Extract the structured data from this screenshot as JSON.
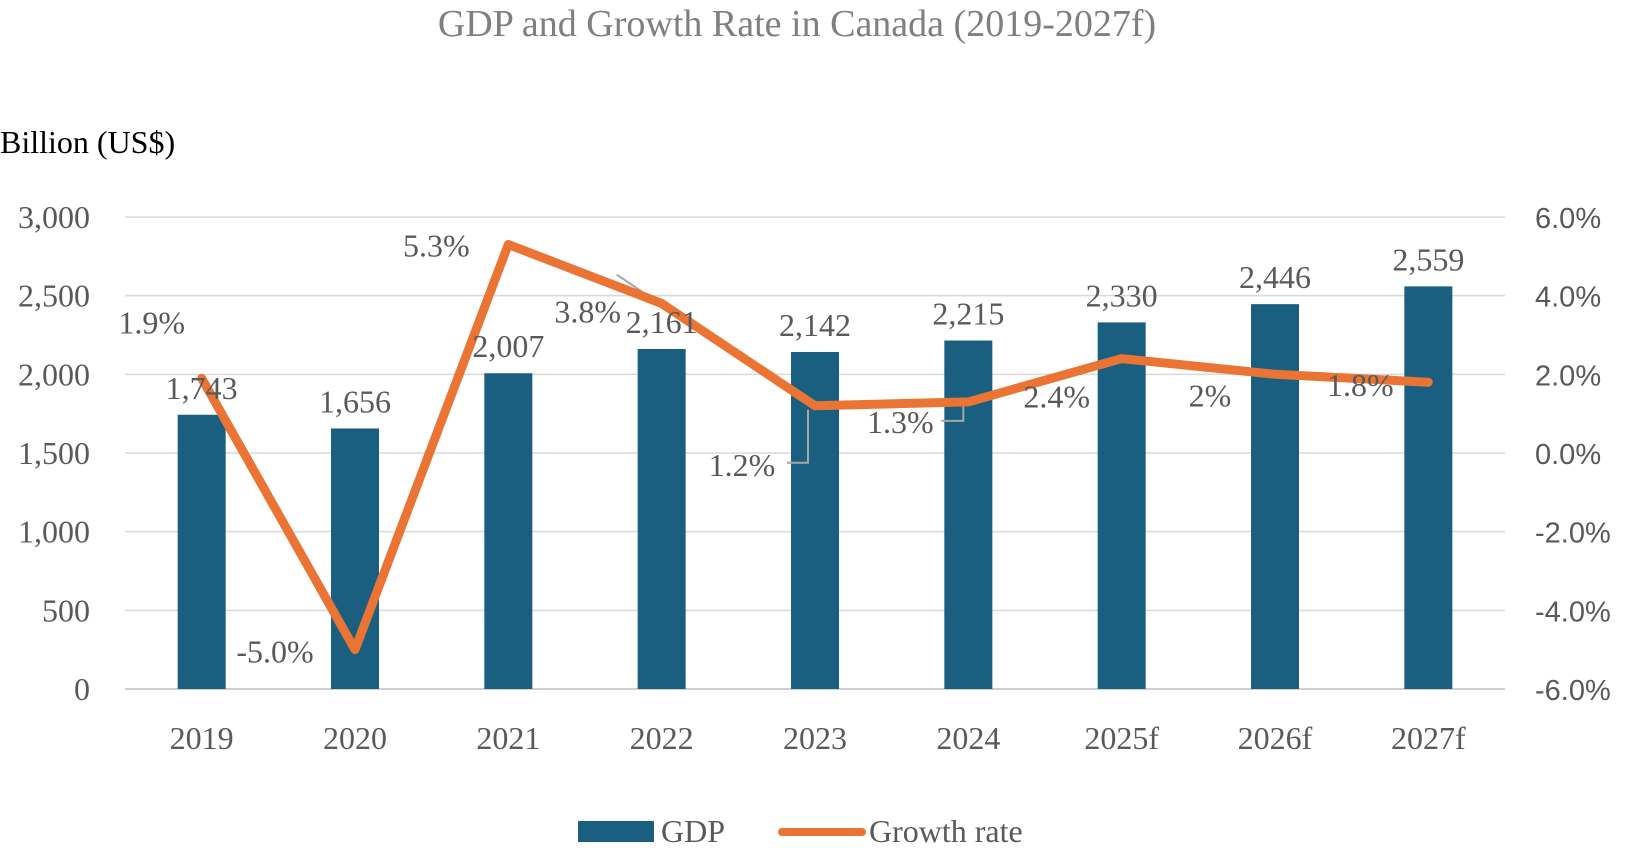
{
  "chart_data": {
    "type": "bar+line",
    "title": "GDP and Growth Rate in Canada (2019-2027f)",
    "ylabel": "Billion (US$)",
    "categories": [
      "2019",
      "2020",
      "2021",
      "2022",
      "2023",
      "2024",
      "2025f",
      "2026f",
      "2027f"
    ],
    "series": [
      {
        "name": "GDP",
        "type": "bar",
        "axis": "left",
        "color": "#1a5e80",
        "values": [
          1743,
          1656,
          2007,
          2161,
          2142,
          2215,
          2330,
          2446,
          2559
        ],
        "labels": [
          "1,743",
          "1,656",
          "2,007",
          "2,161",
          "2,142",
          "2,215",
          "2,330",
          "2,446",
          "2,559"
        ]
      },
      {
        "name": "Growth rate",
        "type": "line",
        "axis": "right",
        "color": "#ea7434",
        "values": [
          1.9,
          -5.0,
          5.3,
          3.8,
          1.2,
          1.3,
          2.4,
          2.0,
          1.8
        ],
        "labels": [
          "1.9%",
          "-5.0%",
          "5.3%",
          "3.8%",
          "1.2%",
          "1.3%",
          "2.4%",
          "2%",
          "1.8%"
        ]
      }
    ],
    "y_left": {
      "range": [
        0,
        3000
      ],
      "ticks": [
        0,
        500,
        1000,
        1500,
        2000,
        2500,
        3000
      ],
      "tick_labels": [
        "0",
        "500",
        "1,000",
        "1,500",
        "2,000",
        "2,500",
        "3,000"
      ]
    },
    "y_right": {
      "range": [
        -6,
        6
      ],
      "ticks": [
        -6,
        -4,
        -2,
        0,
        2,
        4,
        6
      ],
      "tick_labels": [
        "-6.0%",
        "-4.0%",
        "-2.0%",
        "0.0%",
        "2.0%",
        "4.0%",
        "6.0%"
      ]
    },
    "grid": true,
    "legend_position": "bottom"
  }
}
